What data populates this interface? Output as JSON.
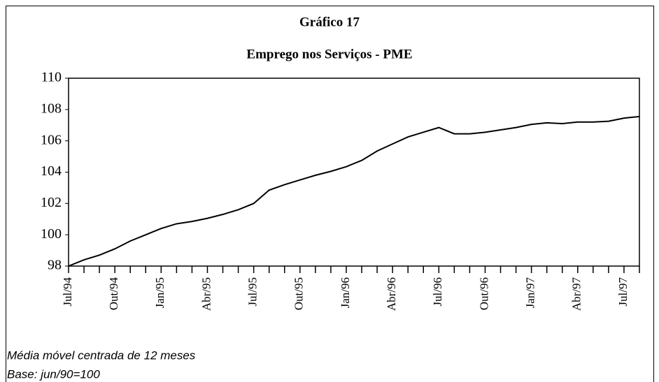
{
  "chart_data": {
    "type": "line",
    "title": "Gráfico 17",
    "subtitle": "Emprego nos Serviços - PME",
    "categories": [
      "Jul/94",
      null,
      null,
      "Out/94",
      null,
      null,
      "Jan/95",
      null,
      null,
      "Abr/95",
      null,
      null,
      "Jul/95",
      null,
      null,
      "Out/95",
      null,
      null,
      "Jan/96",
      null,
      null,
      "Abr/96",
      null,
      null,
      "Jul/96",
      null,
      null,
      "Out/96",
      null,
      null,
      "Jan/97",
      null,
      null,
      "Abr/97",
      null,
      null,
      "Jul/97",
      null
    ],
    "series": [
      {
        "name": "Emprego nos Serviços",
        "color": "#000000",
        "values": [
          98.0,
          98.4,
          98.7,
          99.1,
          99.6,
          100.0,
          100.4,
          100.7,
          100.85,
          101.05,
          101.3,
          101.6,
          102.0,
          102.85,
          103.2,
          103.5,
          103.8,
          104.05,
          104.35,
          104.75,
          105.35,
          105.8,
          106.25,
          106.55,
          106.85,
          106.45,
          106.45,
          106.55,
          106.7,
          106.85,
          107.05,
          107.15,
          107.1,
          107.2,
          107.2,
          107.25,
          107.45,
          107.55
        ]
      }
    ],
    "ylim": [
      98,
      110
    ],
    "yticks": [
      98,
      100,
      102,
      104,
      106,
      108,
      110
    ],
    "notes": [
      "Média móvel centrada de 12 meses",
      "Base: jun/90=100"
    ]
  }
}
